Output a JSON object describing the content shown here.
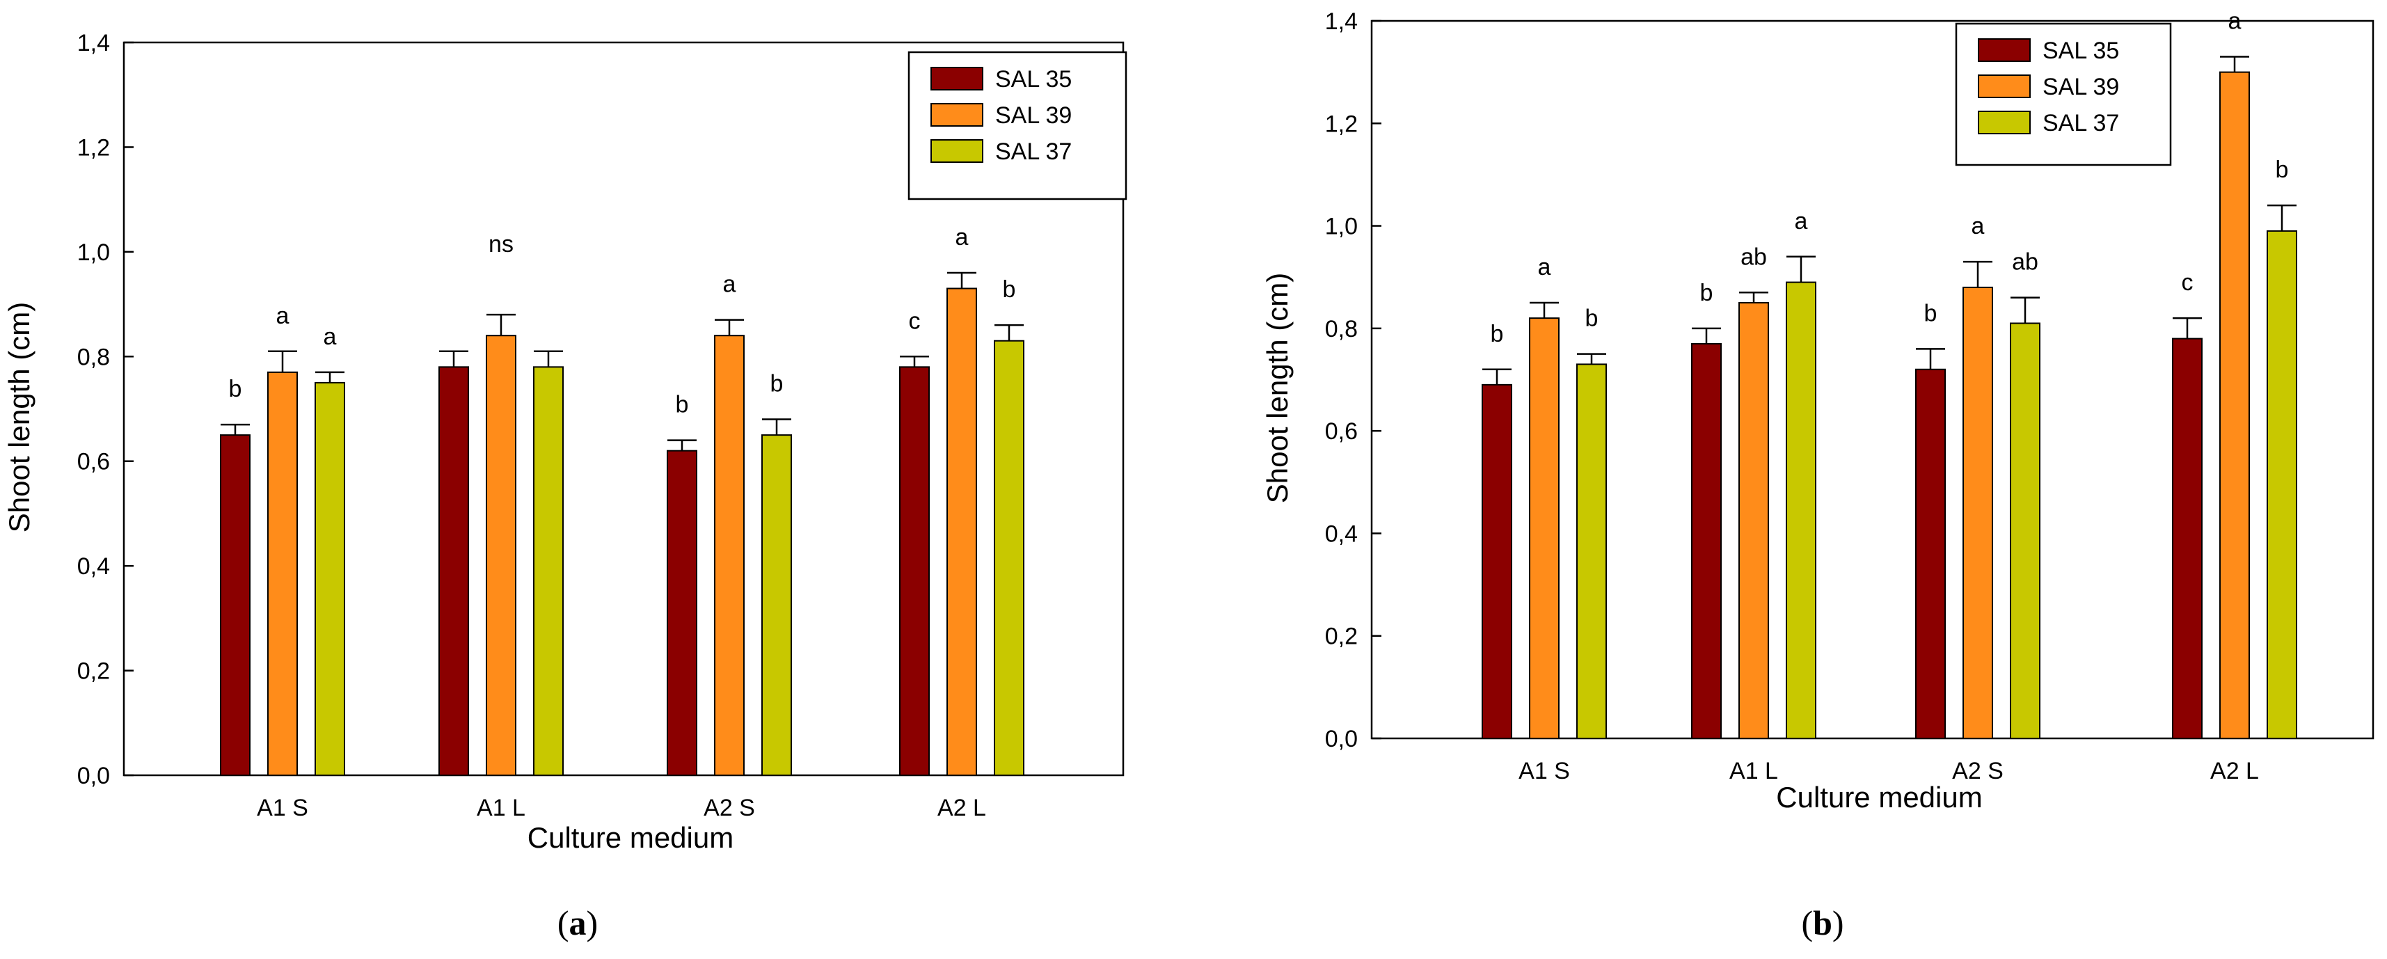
{
  "chart_data": [
    {
      "type": "bar",
      "panel_label": "a",
      "xlabel": "Culture medium",
      "ylabel": "Shoot length (cm)",
      "ylim": [
        0,
        1.4
      ],
      "yticks": [
        "0,0",
        "0,2",
        "0,4",
        "0,6",
        "0,8",
        "1,0",
        "1,2",
        "1,4"
      ],
      "categories": [
        "A1 S",
        "A1 L",
        "A2 S",
        "A2 L"
      ],
      "legend_position": "top-right",
      "grid": false,
      "series": [
        {
          "name": "SAL 35",
          "color": "#8b0000",
          "values": [
            0.65,
            0.78,
            0.62,
            0.78
          ],
          "errors": [
            0.02,
            0.03,
            0.02,
            0.02
          ],
          "labels": [
            "b",
            "",
            "b",
            "c"
          ]
        },
        {
          "name": "SAL 39",
          "color": "#ff8c1a",
          "values": [
            0.77,
            0.84,
            0.84,
            0.93
          ],
          "errors": [
            0.04,
            0.04,
            0.03,
            0.03
          ],
          "labels": [
            "a",
            "",
            "a",
            "a"
          ]
        },
        {
          "name": "SAL 37",
          "color": "#c8c800",
          "values": [
            0.75,
            0.78,
            0.65,
            0.83
          ],
          "errors": [
            0.02,
            0.03,
            0.03,
            0.03
          ],
          "labels": [
            "a",
            "",
            "b",
            "b"
          ]
        }
      ],
      "group_labels": [
        "",
        "ns",
        "",
        ""
      ]
    },
    {
      "type": "bar",
      "panel_label": "b",
      "xlabel": "Culture medium",
      "ylabel": "Shoot length (cm)",
      "ylim": [
        0,
        1.4
      ],
      "yticks": [
        "0,0",
        "0,2",
        "0,4",
        "0,6",
        "0,8",
        "1,0",
        "1,2",
        "1,4"
      ],
      "categories": [
        "A1 S",
        "A1 L",
        "A2 S",
        "A2 L"
      ],
      "legend_position": "top-right",
      "grid": false,
      "series": [
        {
          "name": "SAL 35",
          "color": "#8b0000",
          "values": [
            0.69,
            0.77,
            0.72,
            0.78
          ],
          "errors": [
            0.03,
            0.03,
            0.04,
            0.04
          ],
          "labels": [
            "b",
            "b",
            "b",
            "c"
          ]
        },
        {
          "name": "SAL 39",
          "color": "#ff8c1a",
          "values": [
            0.82,
            0.85,
            0.88,
            1.3
          ],
          "errors": [
            0.03,
            0.02,
            0.05,
            0.03
          ],
          "labels": [
            "a",
            "ab",
            "a",
            "a"
          ]
        },
        {
          "name": "SAL 37",
          "color": "#c8c800",
          "values": [
            0.73,
            0.89,
            0.81,
            0.99
          ],
          "errors": [
            0.02,
            0.05,
            0.05,
            0.05
          ],
          "labels": [
            "b",
            "a",
            "ab",
            "b"
          ]
        }
      ],
      "group_labels": [
        "",
        "",
        "",
        ""
      ]
    }
  ]
}
